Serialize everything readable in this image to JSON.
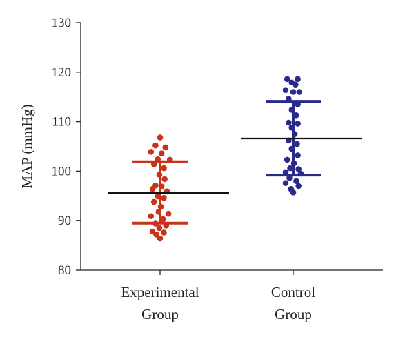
{
  "chart_data": {
    "type": "scatter",
    "title": "",
    "ylabel": "MAP (mmHg)",
    "xlabel": "",
    "ylim": [
      80,
      130
    ],
    "yticks": [
      80,
      90,
      100,
      110,
      120,
      130
    ],
    "grid": false,
    "categories": [
      {
        "line1": "Experimental",
        "line2": "Group"
      },
      {
        "line1": "Control",
        "line2": "Group"
      }
    ],
    "series": [
      {
        "color": "#c8331a",
        "mean": 95.6,
        "sd_upper": 101.9,
        "sd_lower": 89.5,
        "points": [
          [
            0.0,
            106.8
          ],
          [
            -0.06,
            105.2
          ],
          [
            0.07,
            104.8
          ],
          [
            -0.12,
            103.9
          ],
          [
            0.02,
            103.6
          ],
          [
            -0.03,
            102.4
          ],
          [
            0.13,
            102.3
          ],
          [
            -0.08,
            101.4
          ],
          [
            0.05,
            100.6
          ],
          [
            -0.01,
            99.3
          ],
          [
            0.06,
            98.4
          ],
          [
            -0.06,
            97.1
          ],
          [
            0.02,
            96.9
          ],
          [
            -0.1,
            96.4
          ],
          [
            0.09,
            95.9
          ],
          [
            -0.03,
            94.9
          ],
          [
            0.05,
            94.6
          ],
          [
            -0.08,
            93.8
          ],
          [
            0.01,
            92.8
          ],
          [
            -0.02,
            91.8
          ],
          [
            0.11,
            91.4
          ],
          [
            -0.12,
            90.9
          ],
          [
            0.04,
            90.3
          ],
          [
            -0.06,
            89.4
          ],
          [
            0.08,
            89.0
          ],
          [
            -0.01,
            88.5
          ],
          [
            -0.1,
            87.8
          ],
          [
            0.05,
            87.6
          ],
          [
            -0.05,
            87.2
          ],
          [
            0.0,
            86.4
          ]
        ]
      },
      {
        "color": "#2a2a8c",
        "mean": 106.6,
        "sd_upper": 114.1,
        "sd_lower": 99.2,
        "points": [
          [
            -0.08,
            118.6
          ],
          [
            0.06,
            118.6
          ],
          [
            -0.02,
            117.9
          ],
          [
            0.03,
            117.5
          ],
          [
            -0.1,
            116.4
          ],
          [
            0.0,
            116.0
          ],
          [
            0.08,
            116.0
          ],
          [
            -0.06,
            114.6
          ],
          [
            0.06,
            113.5
          ],
          [
            -0.02,
            112.4
          ],
          [
            0.04,
            111.3
          ],
          [
            -0.06,
            109.8
          ],
          [
            0.06,
            109.6
          ],
          [
            -0.02,
            108.8
          ],
          [
            0.02,
            107.5
          ],
          [
            -0.06,
            106.2
          ],
          [
            0.05,
            105.5
          ],
          [
            -0.02,
            104.5
          ],
          [
            0.06,
            103.2
          ],
          [
            -0.08,
            102.3
          ],
          [
            0.01,
            101.6
          ],
          [
            -0.04,
            100.6
          ],
          [
            0.07,
            100.4
          ],
          [
            -0.1,
            99.8
          ],
          [
            0.1,
            99.5
          ],
          [
            -0.05,
            98.6
          ],
          [
            0.04,
            98.0
          ],
          [
            -0.1,
            97.6
          ],
          [
            0.07,
            97.0
          ],
          [
            -0.03,
            96.4
          ],
          [
            0.0,
            95.7
          ]
        ]
      }
    ]
  }
}
